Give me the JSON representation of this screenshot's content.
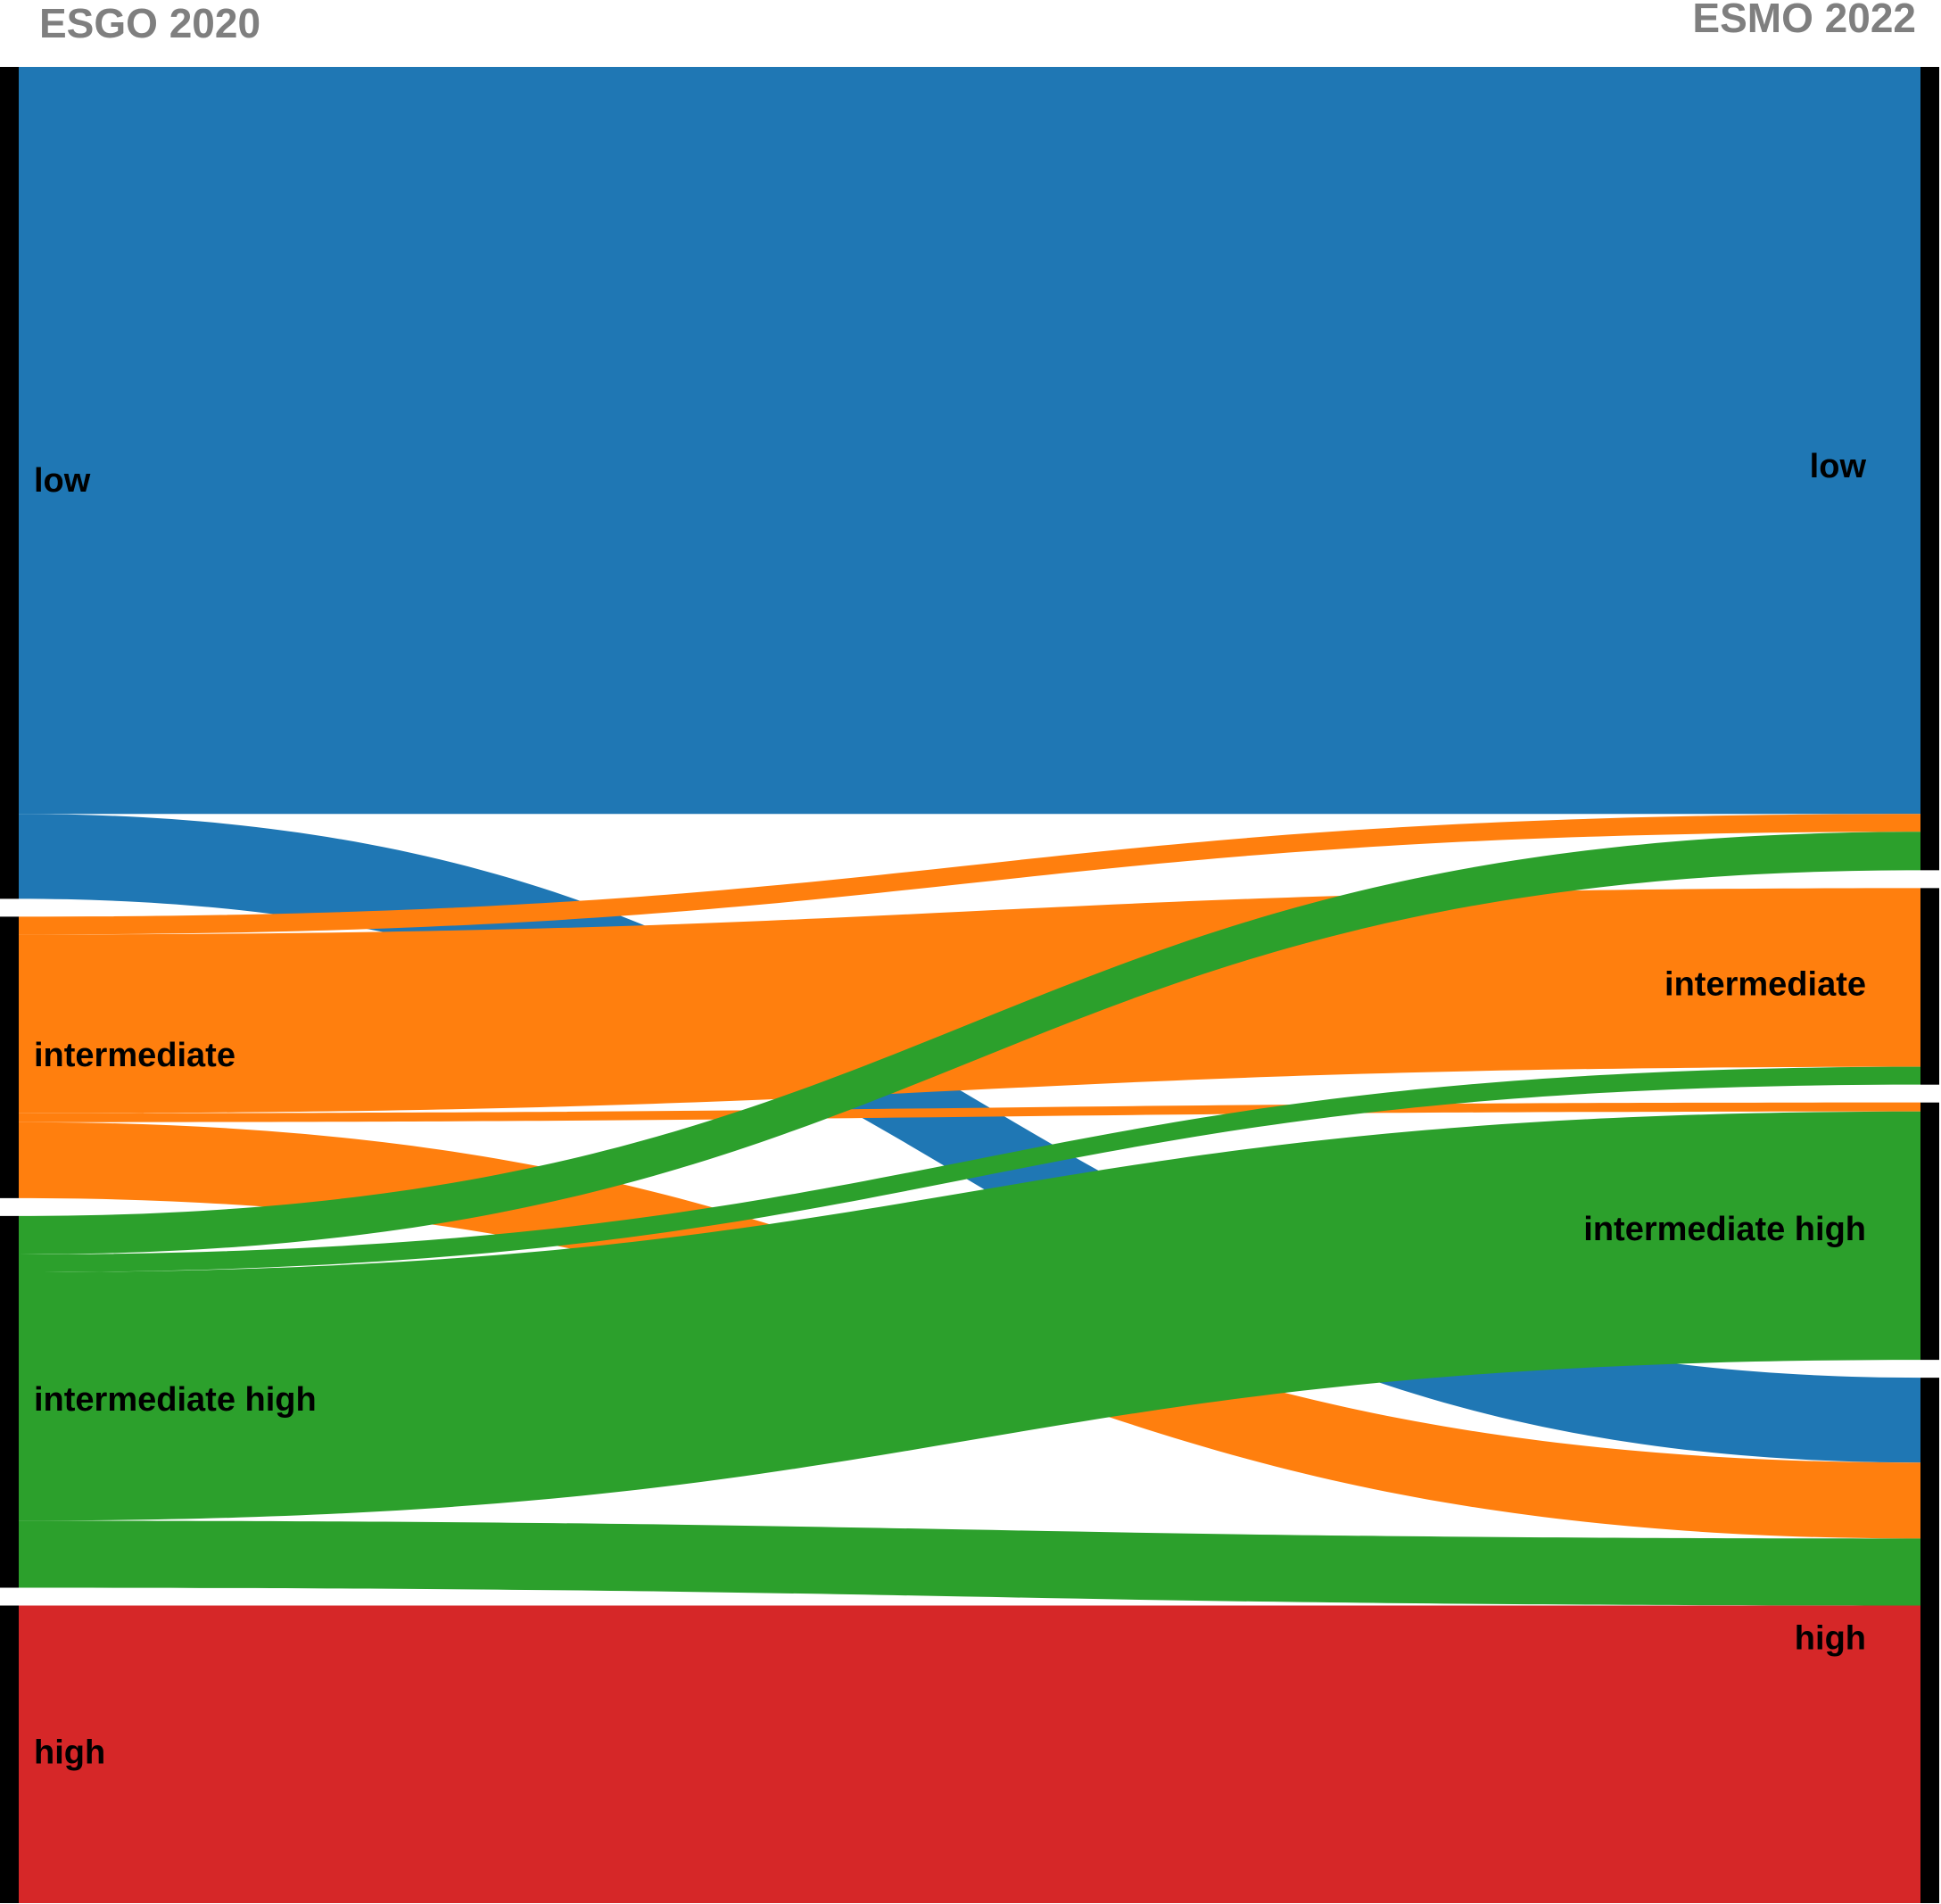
{
  "chart_data": {
    "type": "sankey",
    "columns": [
      "ESGO 2020",
      "ESMO 2022"
    ],
    "left_nodes": [
      "low",
      "intermediate",
      "intermediate high",
      "high"
    ],
    "right_nodes": [
      "low",
      "intermediate",
      "intermediate high",
      "high"
    ],
    "colors": {
      "low": "#1f77b4",
      "intermediate": "#ff7f0e",
      "intermediate high": "#2ca02c",
      "high": "#d62728",
      "node_bar": "#000000",
      "title": "#7f7f7f"
    },
    "flows": [
      {
        "source": "low",
        "target": "low",
        "value": 836
      },
      {
        "source": "low",
        "target": "high",
        "value": 95
      },
      {
        "source": "intermediate",
        "target": "low",
        "value": 20
      },
      {
        "source": "intermediate",
        "target": "intermediate",
        "value": 200
      },
      {
        "source": "intermediate",
        "target": "intermediate high",
        "value": 10
      },
      {
        "source": "intermediate",
        "target": "high",
        "value": 85
      },
      {
        "source": "intermediate high",
        "target": "low",
        "value": 43
      },
      {
        "source": "intermediate high",
        "target": "intermediate",
        "value": 20
      },
      {
        "source": "intermediate high",
        "target": "intermediate high",
        "value": 278
      },
      {
        "source": "intermediate high",
        "target": "high",
        "value": 75
      },
      {
        "source": "high",
        "target": "high",
        "value": 333
      }
    ]
  }
}
